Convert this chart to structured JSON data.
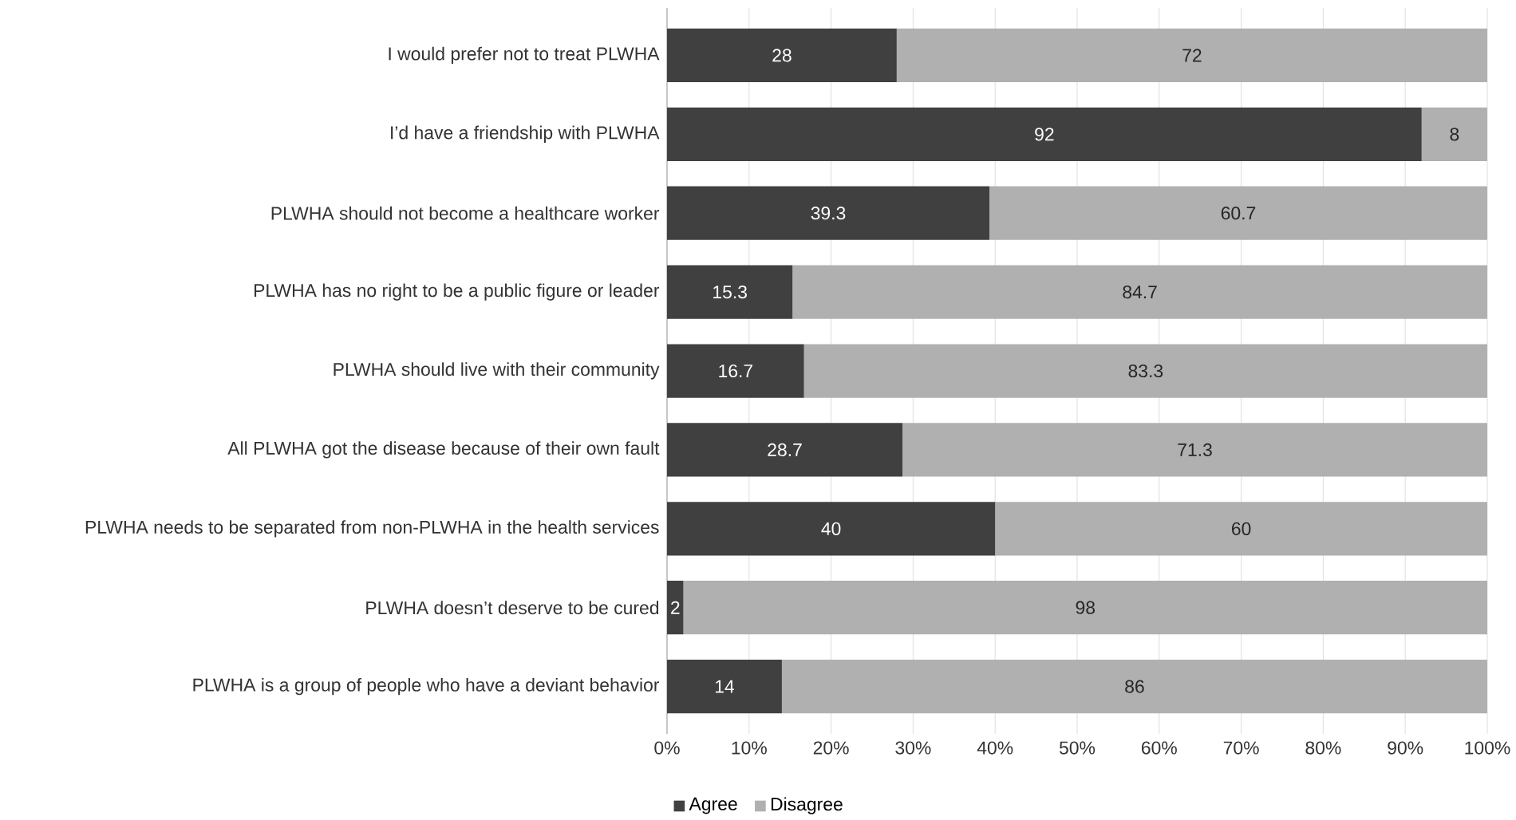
{
  "chart_data": {
    "type": "bar",
    "orientation": "horizontal",
    "stacked": true,
    "data_labels": true,
    "grid": "x",
    "legend": "bottom",
    "categories": [
      "I would prefer not to treat PLWHA",
      "I’d have a friendship with PLWHA",
      "PLWHA should not become a healthcare worker",
      "PLWHA has no right to be a public figure or leader",
      "PLWHA should live with their community",
      "All PLWHA got the disease because of their own fault",
      "PLWHA needs to be separated from non-PLWHA in the health services",
      "PLWHA doesn’t deserve to be cured",
      "PLWHA is a group of people who have a deviant behavior"
    ],
    "series": [
      {
        "name": "Agree",
        "color": "#404040",
        "values": [
          28,
          92,
          39.3,
          15.3,
          16.7,
          28.7,
          40,
          2,
          14
        ]
      },
      {
        "name": "Disagree",
        "color": "#b0b0b0",
        "values": [
          72,
          8,
          60.7,
          84.7,
          83.3,
          71.3,
          60,
          98,
          86
        ]
      }
    ],
    "xlim": [
      0,
      100
    ],
    "xticks": [
      {
        "value": 0,
        "label": "0%"
      },
      {
        "value": 10,
        "label": "10%"
      },
      {
        "value": 20,
        "label": "20%"
      },
      {
        "value": 30,
        "label": "30%"
      },
      {
        "value": 40,
        "label": "40%"
      },
      {
        "value": 50,
        "label": "50%"
      },
      {
        "value": 60,
        "label": "60%"
      },
      {
        "value": 70,
        "label": "70%"
      },
      {
        "value": 80,
        "label": "80%"
      },
      {
        "value": 90,
        "label": "90%"
      },
      {
        "value": 100,
        "label": "100%"
      }
    ]
  }
}
